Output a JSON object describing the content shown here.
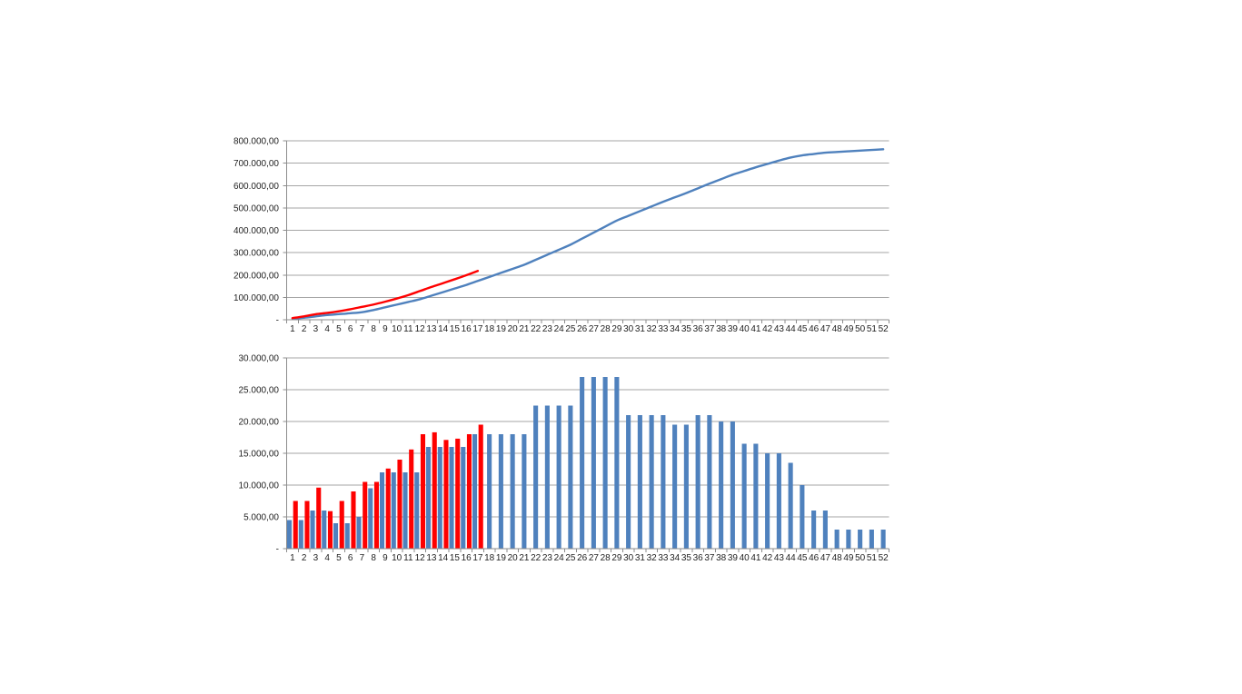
{
  "page": {
    "background_color": "#FFFFFF"
  },
  "styles": {
    "gridline_color": "#A6A6A6",
    "axis_color": "#8C8C8C",
    "label_color": "#1F1F1F",
    "series_blue": "#4F81BD",
    "series_red": "#FE0000"
  },
  "chart_data": [
    {
      "name": "cumulative-line-chart",
      "type": "line",
      "title": "",
      "smooth": true,
      "grid": true,
      "legend": "none",
      "categories": [
        1,
        2,
        3,
        4,
        5,
        6,
        7,
        8,
        9,
        10,
        11,
        12,
        13,
        14,
        15,
        16,
        17,
        18,
        19,
        20,
        21,
        22,
        23,
        24,
        25,
        26,
        27,
        28,
        29,
        30,
        31,
        32,
        33,
        34,
        35,
        36,
        37,
        38,
        39,
        40,
        41,
        42,
        43,
        44,
        45,
        46,
        47,
        48,
        49,
        50,
        51,
        52
      ],
      "ylim": [
        0,
        800000
      ],
      "ytick_step": 100000,
      "ytick_labels": [
        "-",
        "100.000,00",
        "200.000,00",
        "300.000,00",
        "400.000,00",
        "500.000,00",
        "600.000,00",
        "700.000,00",
        "800.000,00"
      ],
      "series": [
        {
          "id": "series-1-cumulative-blue",
          "color": "#4F81BD",
          "values": [
            4500,
            9000,
            15000,
            21000,
            25000,
            29000,
            34000,
            43500,
            55500,
            67500,
            79500,
            91500,
            107500,
            123500,
            139500,
            155500,
            173500,
            191500,
            209500,
            227500,
            245500,
            268000,
            290500,
            313000,
            335500,
            362500,
            389500,
            416500,
            443500,
            464500,
            485500,
            506500,
            527500,
            547000,
            566500,
            587500,
            608500,
            628500,
            648500,
            665000,
            681500,
            696500,
            711500,
            725000,
            735000,
            741000,
            747000,
            750000,
            753000,
            756000,
            759000,
            762000
          ]
        },
        {
          "id": "series-2-cumulative-red",
          "color": "#FE0000",
          "values": [
            7500,
            15000,
            24600,
            30500,
            38000,
            47000,
            57500,
            68000,
            80600,
            94600,
            110200,
            128200,
            146500,
            163600,
            180900,
            198900,
            218400
          ]
        }
      ]
    },
    {
      "name": "weekly-bar-chart",
      "type": "bar",
      "title": "",
      "grid": true,
      "legend": "none",
      "categories": [
        1,
        2,
        3,
        4,
        5,
        6,
        7,
        8,
        9,
        10,
        11,
        12,
        13,
        14,
        15,
        16,
        17,
        18,
        19,
        20,
        21,
        22,
        23,
        24,
        25,
        26,
        27,
        28,
        29,
        30,
        31,
        32,
        33,
        34,
        35,
        36,
        37,
        38,
        39,
        40,
        41,
        42,
        43,
        44,
        45,
        46,
        47,
        48,
        49,
        50,
        51,
        52
      ],
      "ylim": [
        0,
        30000
      ],
      "ytick_step": 5000,
      "ytick_labels": [
        "-",
        "5.000,00",
        "10.000,00",
        "15.000,00",
        "20.000,00",
        "25.000,00",
        "30.000,00"
      ],
      "series": [
        {
          "id": "series-1-weekly-blue",
          "color": "#4F81BD",
          "values": [
            4500,
            4500,
            6000,
            6000,
            4000,
            4000,
            5000,
            9500,
            12000,
            12000,
            12000,
            12000,
            16000,
            16000,
            16000,
            16000,
            18000,
            18000,
            18000,
            18000,
            18000,
            22500,
            22500,
            22500,
            22500,
            27000,
            27000,
            27000,
            27000,
            21000,
            21000,
            21000,
            21000,
            19500,
            19500,
            21000,
            21000,
            20000,
            20000,
            16500,
            16500,
            15000,
            15000,
            13500,
            10000,
            6000,
            6000,
            3000,
            3000,
            3000,
            3000,
            3000
          ]
        },
        {
          "id": "series-2-weekly-red",
          "color": "#FE0000",
          "values": [
            7500,
            7500,
            9600,
            5900,
            7500,
            9000,
            10500,
            10500,
            12600,
            14000,
            15600,
            18000,
            18300,
            17100,
            17300,
            18000,
            19500
          ]
        }
      ]
    }
  ]
}
